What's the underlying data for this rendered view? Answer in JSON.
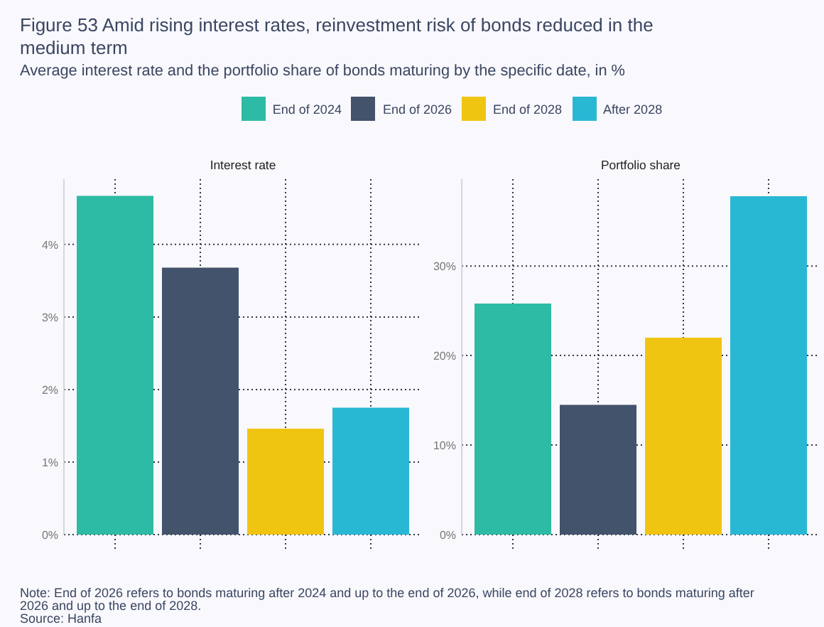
{
  "chart_data": [
    {
      "type": "other",
      "title": "Figure 53 Amid rising interest rates, reinvestment risk of bonds reduced in the medium term",
      "subtitle": "Average interest rate and the portfolio share of bonds maturing by the specific date, in %",
      "annotations": [
        "Note: End of 2026 refers to bonds maturing after 2024 and up to the end of 2026, while end of 2028 refers to bonds maturing after 2026 and up to the end of 2028.",
        "Source: Hanfa"
      ]
    },
    {
      "type": "bar",
      "title": "Interest rate",
      "categories": [
        null,
        null,
        null,
        null
      ],
      "stacked": true,
      "series": [
        {
          "name": "End of 2024",
          "color": "#2dbba5",
          "values": [
            4.67,
            null,
            null,
            null
          ]
        },
        {
          "name": "End of 2026",
          "color": "#43536b",
          "values": [
            null,
            3.68,
            null,
            null
          ]
        },
        {
          "name": "End of 2028",
          "color": "#f0c511",
          "values": [
            null,
            null,
            1.46,
            null
          ]
        },
        {
          "name": "After 2028",
          "color": "#29b8d4",
          "values": [
            null,
            null,
            null,
            1.75
          ]
        }
      ],
      "ylim": [
        0,
        4.9
      ],
      "yticks": [
        {
          "value": 0,
          "label": "0%"
        },
        {
          "value": 1,
          "label": "1%"
        },
        {
          "value": 2,
          "label": "2%"
        },
        {
          "value": 3,
          "label": "3%"
        },
        {
          "value": 4,
          "label": "4%"
        }
      ],
      "grid": true,
      "legend": "top",
      "tick_labels": "y"
    },
    {
      "type": "bar",
      "title": "Portfolio share",
      "categories": [
        null,
        null,
        null,
        null
      ],
      "stacked": true,
      "series": [
        {
          "color": "#2dbba5",
          "values": [
            25.8,
            null,
            null,
            null
          ]
        },
        {
          "color": "#43536b",
          "values": [
            null,
            14.5,
            null,
            null
          ]
        },
        {
          "color": "#f0c511",
          "values": [
            null,
            null,
            22.0,
            null
          ]
        },
        {
          "color": "#29b8d4",
          "values": [
            null,
            null,
            null,
            37.8
          ]
        }
      ],
      "ylim": [
        0,
        39.7
      ],
      "yticks": [
        {
          "value": 0,
          "label": "0%"
        },
        {
          "value": 10,
          "label": "10%"
        },
        {
          "value": 20,
          "label": "20%"
        },
        {
          "value": 30,
          "label": "30%"
        }
      ],
      "grid": true,
      "tick_labels": "y"
    }
  ]
}
